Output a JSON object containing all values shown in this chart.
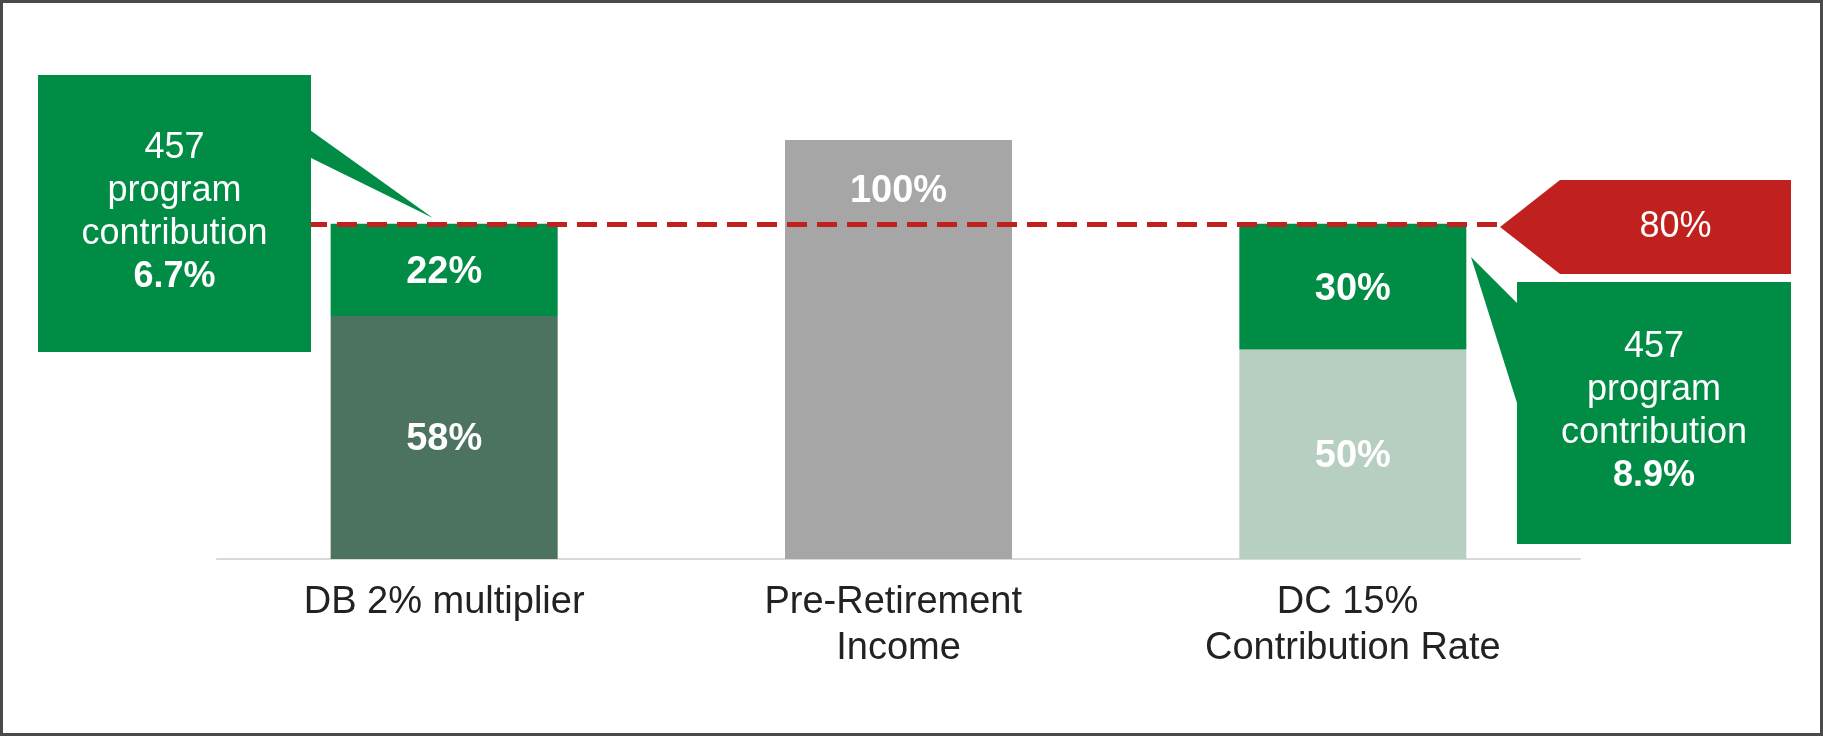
{
  "chart_data": {
    "type": "bar",
    "stacked": true,
    "categories": [
      "DB 2% multiplier",
      "Pre-Retirement Income",
      "DC 15% Contribution Rate"
    ],
    "series": [
      {
        "colors": [
          "#4b735f",
          "#a6a6a6",
          "#b7cfc0"
        ],
        "values": [
          58,
          100,
          50
        ],
        "value_labels": [
          "58%",
          "100%",
          "50%"
        ]
      },
      {
        "color": "#008c45",
        "values": [
          22,
          null,
          30
        ],
        "value_labels": [
          "22%",
          null,
          "30%"
        ]
      }
    ],
    "ylim": [
      0,
      100
    ],
    "tick_labels": "x",
    "ref_lines": [
      {
        "axis": "y",
        "value": 80,
        "label": "80%",
        "color": "#c0201e",
        "line_style": "dashed"
      }
    ],
    "annotations": [
      "457 program contribution 6.7%",
      "457 program contribution 8.9%"
    ]
  }
}
